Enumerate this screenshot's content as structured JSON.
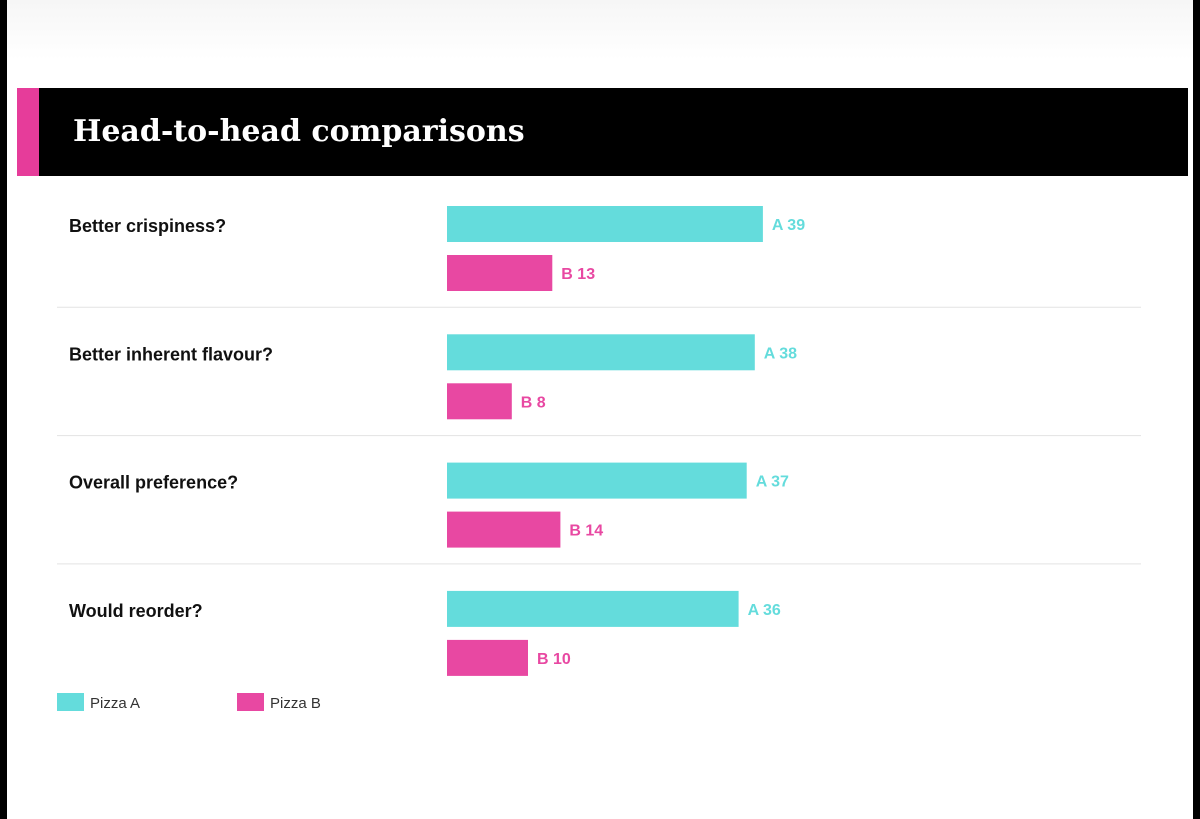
{
  "title": "Head-to-head comparisons",
  "colors": {
    "pizza_a": "#64dcdc",
    "pizza_b": "#e848a2",
    "accent": "#e63c9a"
  },
  "chart_data": {
    "type": "bar",
    "orientation": "horizontal",
    "title": "Head-to-head comparisons",
    "categories": [
      "Better crispiness?",
      "Better inherent flavour?",
      "Overall preference?",
      "Would reorder?"
    ],
    "series": [
      {
        "name": "Pizza A",
        "prefix": "A",
        "values": [
          39,
          38,
          37,
          36
        ]
      },
      {
        "name": "Pizza B",
        "prefix": "B",
        "values": [
          13,
          8,
          14,
          10
        ]
      }
    ],
    "xlim": [
      0,
      50
    ],
    "grid": false,
    "legend": "bottom-left"
  }
}
